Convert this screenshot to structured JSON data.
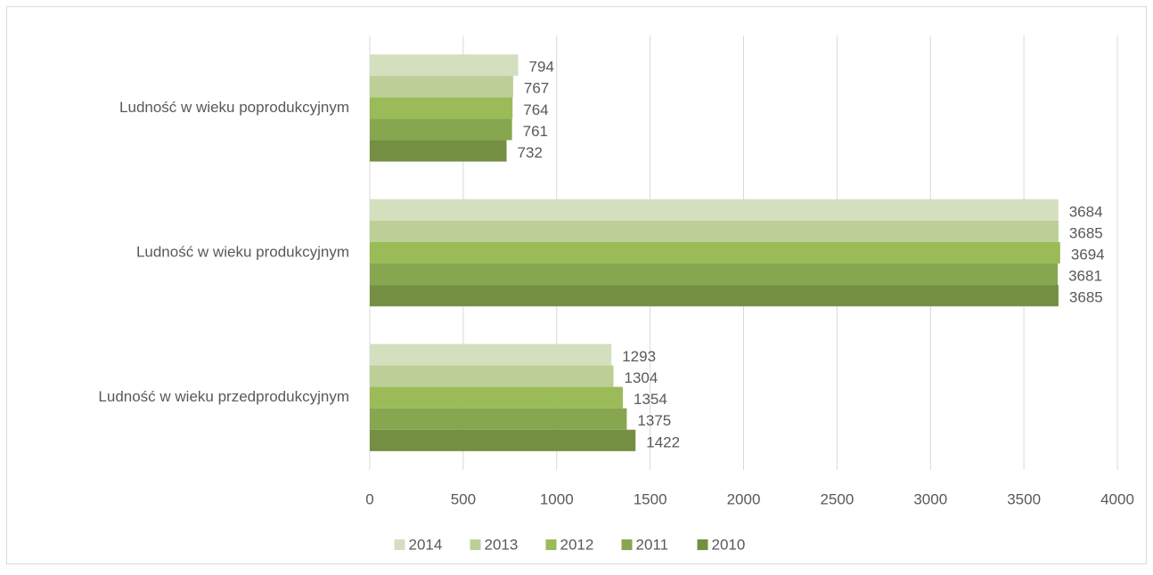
{
  "chart_data": {
    "type": "bar",
    "orientation": "horizontal",
    "categories": [
      "Ludność w wieku przedprodukcyjnym",
      "Ludność w wieku produkcyjnym",
      "Ludność w wieku poprodukcyjnym"
    ],
    "series": [
      {
        "name": "2014",
        "color": "#d4dfc0",
        "values": [
          1293,
          3684,
          794
        ]
      },
      {
        "name": "2013",
        "color": "#bccf96",
        "values": [
          1304,
          3685,
          767
        ]
      },
      {
        "name": "2012",
        "color": "#9bbb59",
        "values": [
          1354,
          3694,
          764
        ]
      },
      {
        "name": "2011",
        "color": "#87a650",
        "values": [
          1375,
          3681,
          761
        ]
      },
      {
        "name": "2010",
        "color": "#748f42",
        "values": [
          1422,
          3685,
          732
        ]
      }
    ],
    "xlim": [
      0,
      4000
    ],
    "xticks": [
      0,
      500,
      1000,
      1500,
      2000,
      2500,
      3000,
      3500,
      4000
    ],
    "grid": true,
    "legend": "bottom"
  }
}
